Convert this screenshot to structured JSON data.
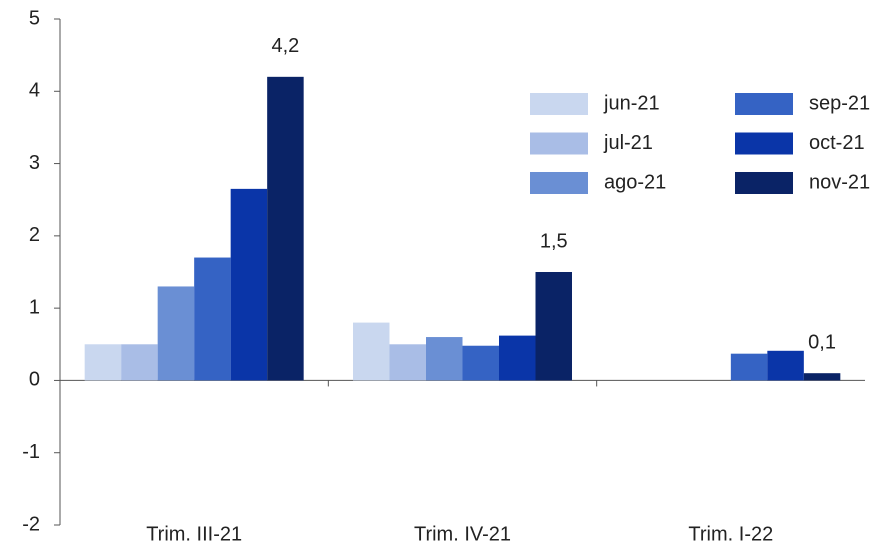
{
  "chart_data": {
    "type": "bar",
    "categories": [
      "Trim. III-21",
      "Trim. IV-21",
      "Trim. I-22"
    ],
    "series": [
      {
        "name": "jun-21",
        "color": "#c9d7ef",
        "values": [
          0.5,
          0.8,
          null
        ]
      },
      {
        "name": "jul-21",
        "color": "#a9bde6",
        "values": [
          0.5,
          0.5,
          null
        ]
      },
      {
        "name": "ago-21",
        "color": "#6a8fd4",
        "values": [
          1.3,
          0.6,
          null
        ]
      },
      {
        "name": "sep-21",
        "color": "#3563c4",
        "values": [
          1.7,
          0.48,
          0.37
        ]
      },
      {
        "name": "oct-21",
        "color": "#0a35a8",
        "values": [
          2.65,
          0.62,
          0.41
        ]
      },
      {
        "name": "nov-21",
        "color": "#0a2366",
        "values": [
          4.2,
          1.5,
          0.1
        ],
        "value_labels": [
          "4,2",
          "1,5",
          "0,1"
        ]
      }
    ],
    "ylim": [
      -2,
      5
    ],
    "yticks": [
      -2,
      -1,
      0,
      1,
      2,
      3,
      4,
      5
    ],
    "legend": "upper right",
    "value_label_color": "#9b1b4a"
  }
}
